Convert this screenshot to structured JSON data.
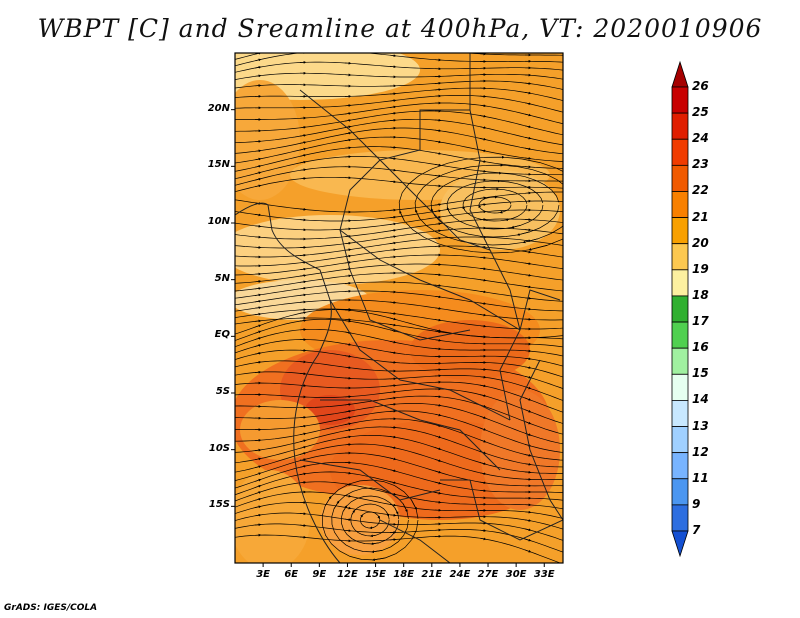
{
  "title": "WBPT [C] and Sreamline at 400hPa, VT: 2020010906",
  "y_axis": {
    "labels": [
      "20N",
      "15N",
      "10N",
      "5N",
      "EQ",
      "5S",
      "10S",
      "15S"
    ],
    "lat_values": [
      20,
      15,
      10,
      5,
      0,
      -5,
      -10,
      -15
    ],
    "range": [
      -20,
      25
    ]
  },
  "x_axis": {
    "labels": [
      "3E",
      "6E",
      "9E",
      "12E",
      "15E",
      "18E",
      "21E",
      "24E",
      "27E",
      "30E",
      "33E"
    ],
    "lon_values": [
      3,
      6,
      9,
      12,
      15,
      18,
      21,
      24,
      27,
      30,
      33
    ],
    "range": [
      0,
      35
    ]
  },
  "colorbar": {
    "labels": [
      "26",
      "25",
      "24",
      "23",
      "22",
      "21",
      "20",
      "19",
      "18",
      "17",
      "16",
      "15",
      "14",
      "13",
      "12",
      "11",
      "9",
      "7"
    ],
    "colors": [
      "#a50000",
      "#c80000",
      "#e01e00",
      "#f03c00",
      "#f05a00",
      "#f88000",
      "#f8a000",
      "#fcc850",
      "#fcf0a0",
      "#30b030",
      "#50d050",
      "#a0f0a0",
      "#e6fff0",
      "#c8e8ff",
      "#a0d0ff",
      "#78b4ff",
      "#4b96f0",
      "#2d6ee0",
      "#1450d2"
    ]
  },
  "credit": "GrADS: IGES/COLA"
}
